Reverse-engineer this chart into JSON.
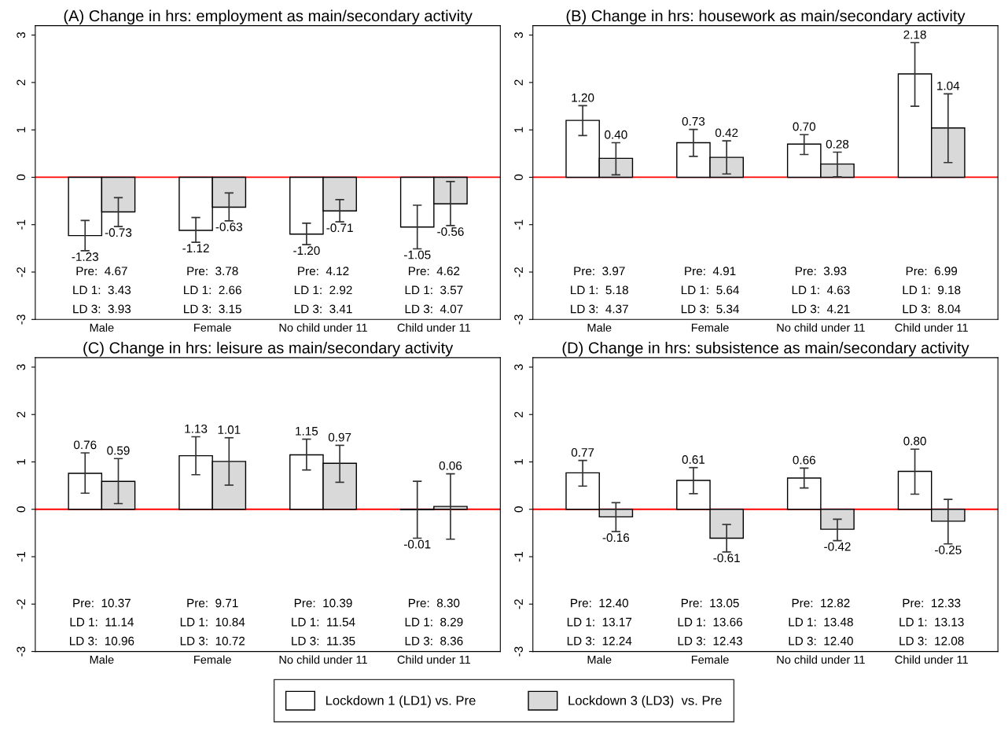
{
  "chart_data": [
    {
      "type": "bar",
      "title": "(A) Change in hrs: employment as main/secondary activity",
      "categories": [
        "Male",
        "Female",
        "No child under 11",
        "Child under 11"
      ],
      "ylim": [
        -3,
        3.2
      ],
      "yticks": [
        -3,
        -2,
        -1,
        0,
        1,
        2,
        3
      ],
      "grid": false,
      "legend": "bottom",
      "series": [
        {
          "name": "Lockdown 1 (LD1) vs. Pre",
          "color": "#ffffff",
          "values": [
            -1.23,
            -1.12,
            -1.2,
            -1.05
          ],
          "value_labels": [
            "-1.23",
            "-1.12",
            "-1.20",
            "-1.05"
          ],
          "errors": [
            [
              -1.55,
              -0.91
            ],
            [
              -1.37,
              -0.85
            ],
            [
              -1.42,
              -0.97
            ],
            [
              -1.51,
              -0.59
            ]
          ]
        },
        {
          "name": "Lockdown 3 (LD3)  vs. Pre",
          "color": "#d9d9d9",
          "values": [
            -0.73,
            -0.63,
            -0.71,
            -0.56
          ],
          "value_labels": [
            "-0.73",
            "-0.63",
            "-0.71",
            "-0.56"
          ],
          "errors": [
            [
              -1.04,
              -0.43
            ],
            [
              -0.92,
              -0.33
            ],
            [
              -0.94,
              -0.47
            ],
            [
              -1.02,
              -0.09
            ]
          ]
        }
      ],
      "ref_lines": [
        {
          "axis": "y",
          "value": 0,
          "color": "#ff0000"
        }
      ],
      "annotations": [
        "Pre:  4.67",
        "LD 1:  3.43",
        "LD 3:  3.93",
        "Pre:  3.78",
        "LD 1:  2.66",
        "LD 3:  3.15",
        "Pre:  4.12",
        "LD 1:  2.92",
        "LD 3:  3.41",
        "Pre:  4.62",
        "LD 1:  3.57",
        "LD 3:  4.07"
      ]
    },
    {
      "type": "bar",
      "title": "(B) Change in hrs: housework as main/secondary activity",
      "categories": [
        "Male",
        "Female",
        "No child under 11",
        "Child under 11"
      ],
      "ylim": [
        -3,
        3.2
      ],
      "yticks": [
        -3,
        -2,
        -1,
        0,
        1,
        2,
        3
      ],
      "grid": false,
      "series": [
        {
          "color": "#ffffff",
          "values": [
            1.2,
            0.73,
            0.7,
            2.18
          ],
          "value_labels": [
            "1.20",
            "0.73",
            "0.70",
            "2.18"
          ],
          "errors": [
            [
              0.88,
              1.51
            ],
            [
              0.44,
              1.01
            ],
            [
              0.48,
              0.9
            ],
            [
              1.5,
              2.84
            ]
          ]
        },
        {
          "color": "#d9d9d9",
          "values": [
            0.4,
            0.42,
            0.28,
            1.04
          ],
          "value_labels": [
            "0.40",
            "0.42",
            "0.28",
            "1.04"
          ],
          "errors": [
            [
              0.05,
              0.73
            ],
            [
              0.07,
              0.77
            ],
            [
              0.01,
              0.53
            ],
            [
              0.31,
              1.76
            ]
          ]
        }
      ],
      "ref_lines": [
        {
          "axis": "y",
          "value": 0,
          "color": "#ff0000"
        }
      ],
      "annotations": [
        "Pre:  3.97",
        "LD 1:  5.18",
        "LD 3:  4.37",
        "Pre:  4.91",
        "LD 1:  5.64",
        "LD 3:  5.34",
        "Pre:  3.93",
        "LD 1:  4.63",
        "LD 3:  4.21",
        "Pre:  6.99",
        "LD 1:  9.18",
        "LD 3:  8.04"
      ]
    },
    {
      "type": "bar",
      "title": "(C) Change in hrs: leisure as main/secondary activity",
      "categories": [
        "Male",
        "Female",
        "No child under 11",
        "Child under 11"
      ],
      "ylim": [
        -3,
        3.2
      ],
      "yticks": [
        -3,
        -2,
        -1,
        0,
        1,
        2,
        3
      ],
      "grid": false,
      "series": [
        {
          "color": "#ffffff",
          "values": [
            0.76,
            1.13,
            1.15,
            -0.01
          ],
          "value_labels": [
            "0.76",
            "1.13",
            "1.15",
            "-0.01"
          ],
          "errors": [
            [
              0.34,
              1.19
            ],
            [
              0.73,
              1.53
            ],
            [
              0.83,
              1.48
            ],
            [
              -0.61,
              0.59
            ]
          ]
        },
        {
          "color": "#d9d9d9",
          "values": [
            0.59,
            1.01,
            0.97,
            0.06
          ],
          "value_labels": [
            "0.59",
            "1.01",
            "0.97",
            "0.06"
          ],
          "errors": [
            [
              0.12,
              1.07
            ],
            [
              0.51,
              1.51
            ],
            [
              0.57,
              1.35
            ],
            [
              -0.63,
              0.75
            ]
          ]
        }
      ],
      "ref_lines": [
        {
          "axis": "y",
          "value": 0,
          "color": "#ff0000"
        }
      ],
      "annotations": [
        "Pre:  10.37",
        "LD 1:  11.14",
        "LD 3:  10.96",
        "Pre:  9.71",
        "LD 1:  10.84",
        "LD 3:  10.72",
        "Pre:  10.39",
        "LD 1:  11.54",
        "LD 3:  11.35",
        "Pre:  8.30",
        "LD 1:  8.29",
        "LD 3:  8.36"
      ]
    },
    {
      "type": "bar",
      "title": "(D) Change in hrs: subsistence as main/secondary activity",
      "categories": [
        "Male",
        "Female",
        "No child under 11",
        "Child under 11"
      ],
      "ylim": [
        -3,
        3.2
      ],
      "yticks": [
        -3,
        -2,
        -1,
        0,
        1,
        2,
        3
      ],
      "grid": false,
      "series": [
        {
          "color": "#ffffff",
          "values": [
            0.77,
            0.61,
            0.66,
            0.8
          ],
          "value_labels": [
            "0.77",
            "0.61",
            "0.66",
            "0.80"
          ],
          "errors": [
            [
              0.49,
              1.03
            ],
            [
              0.33,
              0.88
            ],
            [
              0.45,
              0.87
            ],
            [
              0.32,
              1.27
            ]
          ]
        },
        {
          "color": "#d9d9d9",
          "values": [
            -0.16,
            -0.61,
            -0.42,
            -0.25
          ],
          "value_labels": [
            "-0.16",
            "-0.61",
            "-0.42",
            "-0.25"
          ],
          "errors": [
            [
              -0.47,
              0.14
            ],
            [
              -0.9,
              -0.32
            ],
            [
              -0.66,
              -0.21
            ],
            [
              -0.73,
              0.21
            ]
          ]
        }
      ],
      "ref_lines": [
        {
          "axis": "y",
          "value": 0,
          "color": "#ff0000"
        }
      ],
      "annotations": [
        "Pre:  12.40",
        "LD 1:  13.17",
        "LD 3:  12.24",
        "Pre:  13.05",
        "LD 1:  13.66",
        "LD 3:  12.43",
        "Pre:  12.82",
        "LD 1:  13.48",
        "LD 3:  12.40",
        "Pre:  12.33",
        "LD 1:  13.13",
        "LD 3:  12.08"
      ]
    }
  ]
}
